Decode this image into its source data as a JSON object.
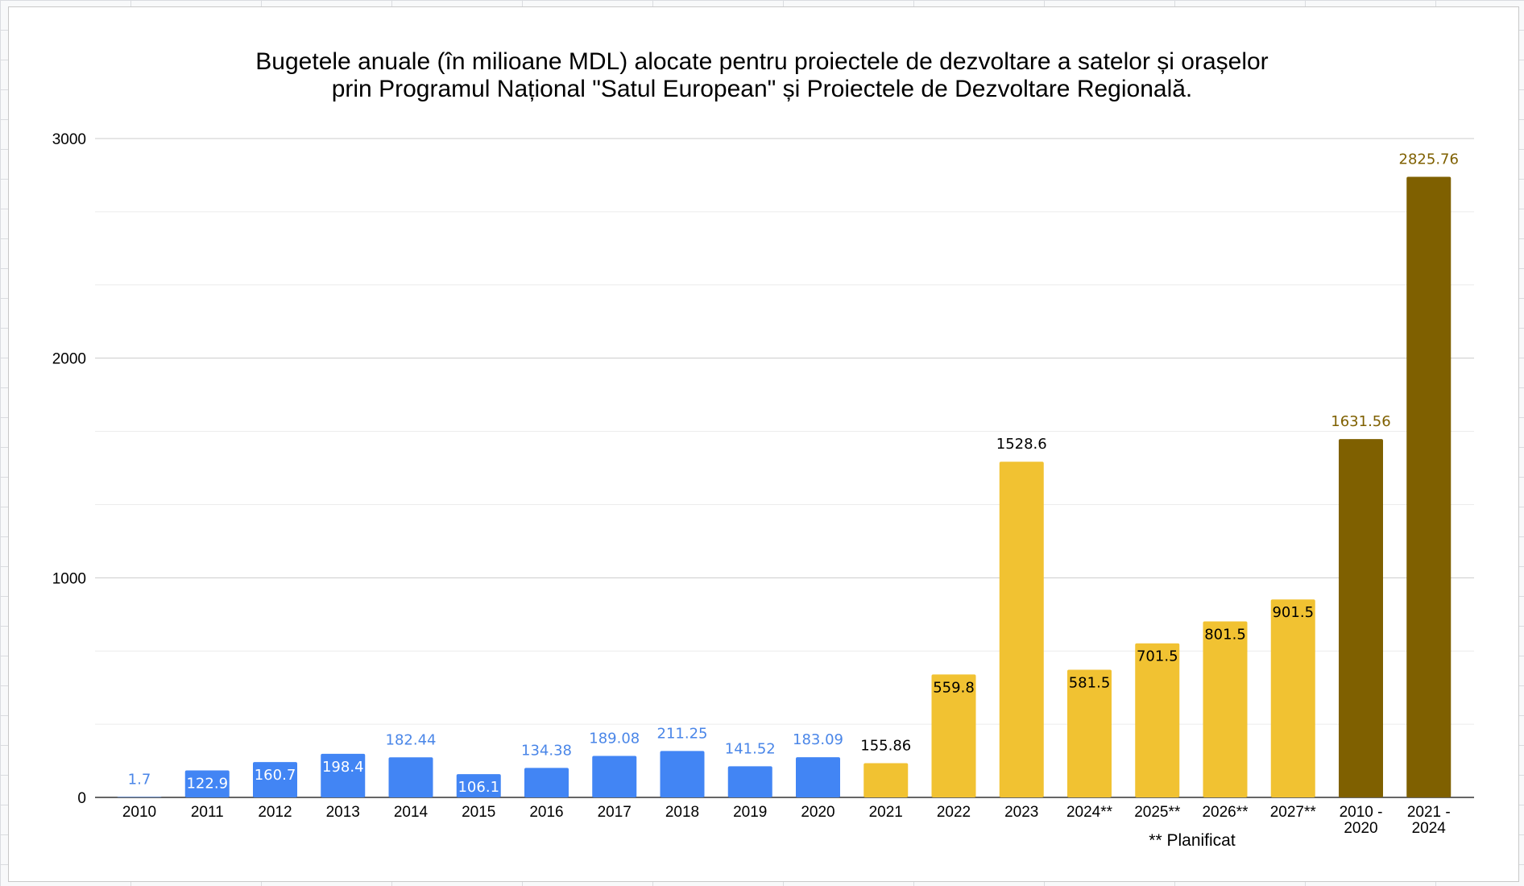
{
  "chart_data": {
    "type": "bar",
    "title_lines": [
      "Bugetele anuale (în milioane MDL) alocate pentru proiectele de dezvoltare a satelor și orașelor",
      "prin Programul Național \"Satul European\" și Proiectele de Dezvoltare Regională."
    ],
    "categories": [
      "2010",
      "2011",
      "2012",
      "2013",
      "2014",
      "2015",
      "2016",
      "2017",
      "2018",
      "2019",
      "2020",
      "2021",
      "2022",
      "2023",
      "2024**",
      "2025**",
      "2026**",
      "2027**",
      "2010 - 2020",
      "2021 - 2024"
    ],
    "values": [
      1.7,
      122.9,
      160.7,
      198.4,
      182.44,
      106.1,
      134.38,
      189.08,
      211.25,
      141.52,
      183.09,
      155.86,
      559.8,
      1528.6,
      581.5,
      701.5,
      801.5,
      901.5,
      1631.56,
      2825.76
    ],
    "value_labels": [
      "1.7",
      "122.9",
      "160.7",
      "198.4",
      "182.44",
      "106.1",
      "134.38",
      "189.08",
      "211.25",
      "141.52",
      "183.09",
      "155.86",
      "559.8",
      "1528.6",
      "581.5",
      "701.5",
      "801.5",
      "901.5",
      "1631.56",
      "2825.76"
    ],
    "bar_colors": [
      "#4285f4",
      "#4285f4",
      "#4285f4",
      "#4285f4",
      "#4285f4",
      "#4285f4",
      "#4285f4",
      "#4285f4",
      "#4285f4",
      "#4285f4",
      "#4285f4",
      "#f1c232",
      "#f1c232",
      "#f1c232",
      "#f1c232",
      "#f1c232",
      "#f1c232",
      "#f1c232",
      "#7f6000",
      "#7f6000"
    ],
    "label_colors": [
      "#4a86e8",
      "#ffffff",
      "#ffffff",
      "#ffffff",
      "#4a86e8",
      "#ffffff",
      "#4a86e8",
      "#4a86e8",
      "#4a86e8",
      "#4a86e8",
      "#4a86e8",
      "#000000",
      "#000000",
      "#000000",
      "#000000",
      "#000000",
      "#000000",
      "#000000",
      "#7f6000",
      "#7f6000"
    ],
    "label_inside": [
      false,
      true,
      true,
      true,
      false,
      true,
      false,
      false,
      false,
      false,
      false,
      false,
      true,
      false,
      true,
      true,
      true,
      true,
      false,
      false
    ],
    "ylim": [
      0,
      3000
    ],
    "yticks": [
      0,
      1000,
      2000,
      3000
    ],
    "grid": true,
    "minor_grid": true,
    "xlabel": "",
    "ylabel": "",
    "footnote": "** Planificat"
  }
}
